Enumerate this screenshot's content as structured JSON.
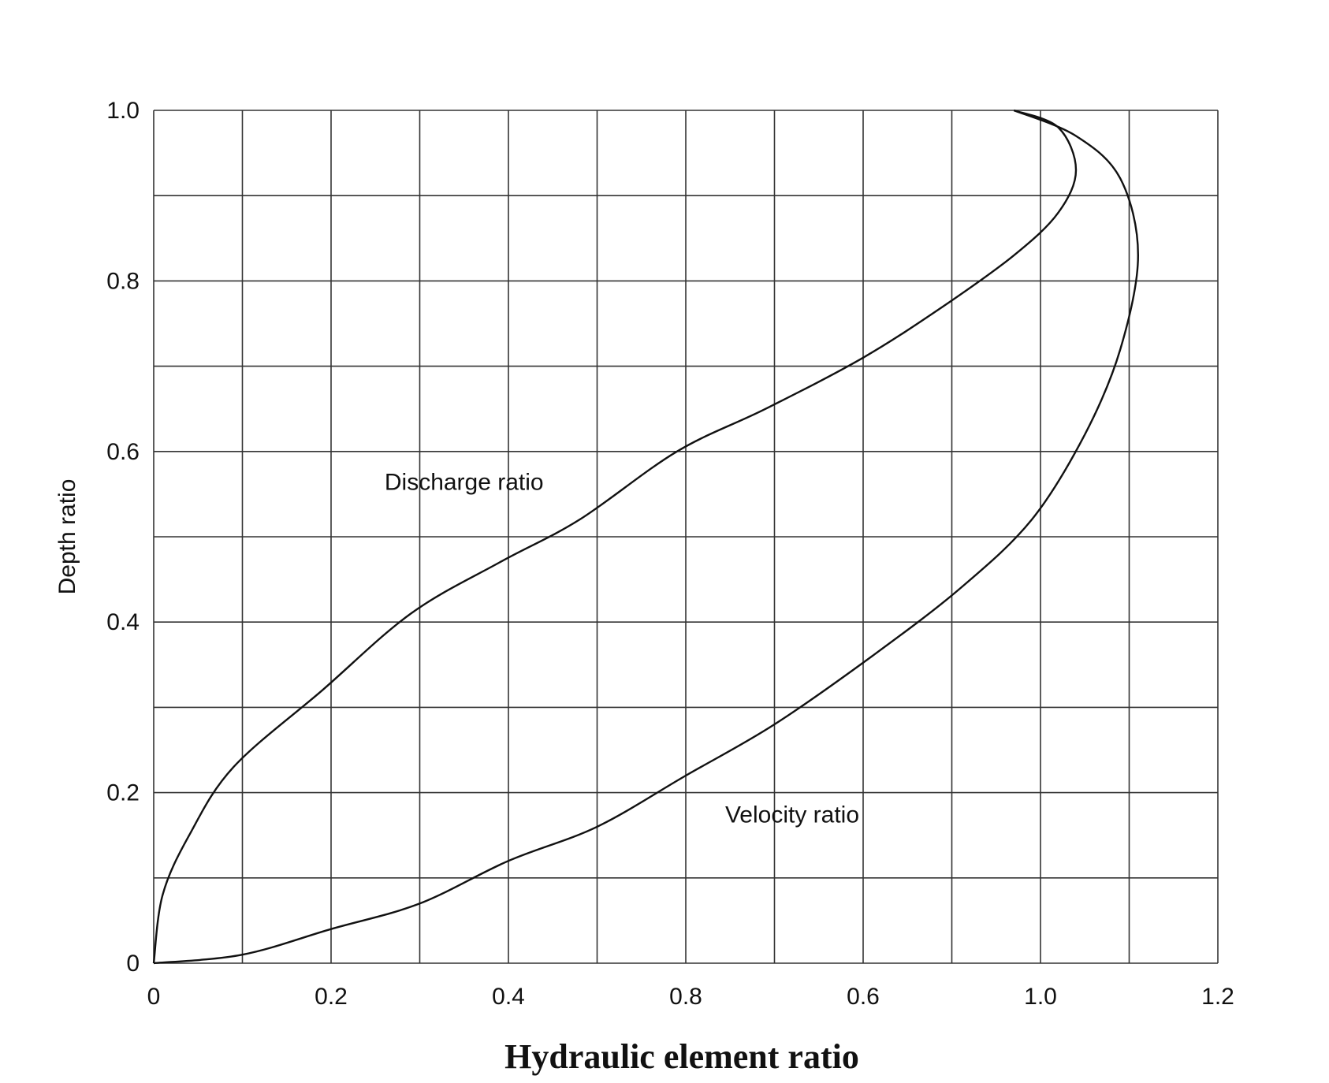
{
  "chart_data": {
    "type": "line",
    "title": "",
    "xlabel": "Hydraulic element ratio",
    "ylabel": "Depth ratio",
    "xlim": [
      0,
      1.2
    ],
    "ylim": [
      0,
      1.0
    ],
    "grid": true,
    "x_tick_labels": [
      "0",
      "0.2",
      "0.4",
      "0.8",
      "0.6",
      "1.0",
      "1.2"
    ],
    "y_tick_labels": [
      "0",
      "0.2",
      "0.4",
      "0.6",
      "0.8",
      "1.0"
    ],
    "series": [
      {
        "name": "Discharge ratio",
        "points": [
          {
            "x": 0.0,
            "y": 0.0
          },
          {
            "x": 0.01,
            "y": 0.08
          },
          {
            "x": 0.04,
            "y": 0.15
          },
          {
            "x": 0.09,
            "y": 0.23
          },
          {
            "x": 0.19,
            "y": 0.32
          },
          {
            "x": 0.29,
            "y": 0.41
          },
          {
            "x": 0.39,
            "y": 0.47
          },
          {
            "x": 0.48,
            "y": 0.52
          },
          {
            "x": 0.59,
            "y": 0.6
          },
          {
            "x": 0.69,
            "y": 0.65
          },
          {
            "x": 0.8,
            "y": 0.71
          },
          {
            "x": 0.89,
            "y": 0.77
          },
          {
            "x": 0.97,
            "y": 0.83
          },
          {
            "x": 1.02,
            "y": 0.88
          },
          {
            "x": 1.04,
            "y": 0.93
          },
          {
            "x": 1.02,
            "y": 0.98
          },
          {
            "x": 0.97,
            "y": 1.0
          }
        ]
      },
      {
        "name": "Velocity ratio",
        "points": [
          {
            "x": 0.0,
            "y": 0.0
          },
          {
            "x": 0.1,
            "y": 0.01
          },
          {
            "x": 0.2,
            "y": 0.04
          },
          {
            "x": 0.3,
            "y": 0.07
          },
          {
            "x": 0.4,
            "y": 0.12
          },
          {
            "x": 0.5,
            "y": 0.16
          },
          {
            "x": 0.6,
            "y": 0.22
          },
          {
            "x": 0.7,
            "y": 0.28
          },
          {
            "x": 0.81,
            "y": 0.36
          },
          {
            "x": 0.91,
            "y": 0.44
          },
          {
            "x": 0.99,
            "y": 0.52
          },
          {
            "x": 1.05,
            "y": 0.62
          },
          {
            "x": 1.09,
            "y": 0.72
          },
          {
            "x": 1.11,
            "y": 0.83
          },
          {
            "x": 1.09,
            "y": 0.92
          },
          {
            "x": 1.04,
            "y": 0.97
          },
          {
            "x": 0.97,
            "y": 1.0
          }
        ]
      }
    ],
    "annotations": [
      "Discharge ratio",
      "Velocity ratio"
    ]
  }
}
